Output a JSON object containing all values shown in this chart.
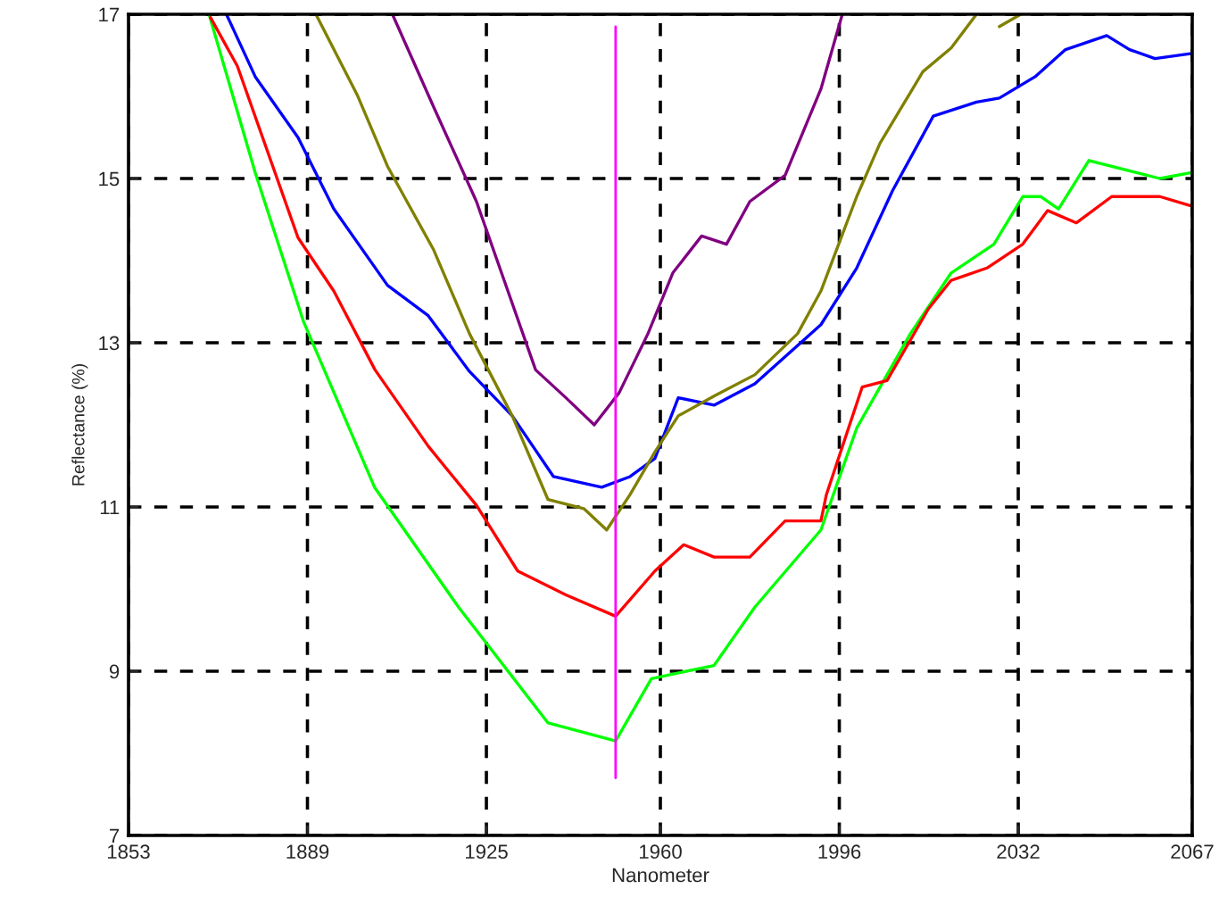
{
  "chart_data": {
    "type": "line",
    "xlabel": "Nanometer",
    "ylabel": "Reflectance (%)",
    "xlim": [
      1853,
      2067
    ],
    "ylim": [
      7,
      17
    ],
    "xticks": [
      1853,
      1889,
      1925,
      1960,
      1996,
      2032,
      2067
    ],
    "yticks": [
      7,
      9,
      11,
      13,
      15,
      17
    ],
    "grid": true,
    "legend": false,
    "marker": "none",
    "line_style": "solid",
    "ref_lines": [
      {
        "axis": "x",
        "value": 1951,
        "color": "#ff00ff"
      }
    ],
    "series": [
      {
        "color": "#00ff00",
        "x": [
          1869.2,
          1878.5,
          1888.2,
          1902.5,
          1919.4,
          1937.4,
          1951.0,
          1958.2,
          1970.8,
          1979.0,
          1992.3,
          1999.5,
          2010.3,
          2018.5,
          2027.1,
          2032.9,
          2036.5,
          2040.1,
          2046.2,
          2060.5,
          2066.6
        ],
        "values": [
          17.0,
          15.07,
          13.26,
          11.24,
          9.78,
          8.37,
          8.15,
          8.91,
          9.07,
          9.78,
          10.72,
          11.96,
          13.11,
          13.85,
          14.2,
          14.78,
          14.78,
          14.63,
          15.22,
          15.0,
          15.07
        ]
      },
      {
        "color": "#ff0000",
        "x": [
          1869.5,
          1874.9,
          1887.1,
          1894.3,
          1902.6,
          1913.3,
          1923.0,
          1931.3,
          1941.0,
          1951.0,
          1958.9,
          1964.7,
          1970.8,
          1978.0,
          1985.1,
          1992.3,
          1993.4,
          2000.6,
          2005.6,
          2013.9,
          2018.5,
          2025.7,
          2032.9,
          2037.9,
          2043.7,
          2050.8,
          2060.5,
          2066.6
        ],
        "values": [
          16.96,
          16.37,
          14.28,
          13.63,
          12.67,
          11.74,
          11.02,
          10.22,
          9.93,
          9.67,
          10.22,
          10.54,
          10.39,
          10.39,
          10.83,
          10.83,
          11.15,
          12.46,
          12.54,
          13.41,
          13.76,
          13.91,
          14.2,
          14.61,
          14.46,
          14.78,
          14.78,
          14.67
        ]
      },
      {
        "color": "#0000ff",
        "x": [
          1872.7,
          1878.5,
          1887.1,
          1894.3,
          1905.1,
          1913.3,
          1921.6,
          1930.2,
          1938.5,
          1948.2,
          1953.9,
          1958.9,
          1963.6,
          1970.8,
          1979.0,
          1992.3,
          1999.5,
          2006.7,
          2014.9,
          2023.6,
          2028.2,
          2035.4,
          2041.5,
          2049.8,
          2054.4,
          2059.5,
          2066.6
        ],
        "values": [
          17.0,
          16.24,
          15.5,
          14.63,
          13.7,
          13.33,
          12.65,
          12.11,
          11.37,
          11.24,
          11.37,
          11.59,
          12.33,
          12.24,
          12.5,
          13.22,
          13.91,
          14.85,
          15.76,
          15.93,
          15.98,
          16.24,
          16.57,
          16.74,
          16.57,
          16.46,
          16.52
        ]
      },
      {
        "color": "#808000",
        "x": [
          1890.7,
          1899.0,
          1905.1,
          1914.4,
          1921.6,
          1930.2,
          1937.4,
          1944.6,
          1949.2,
          1953.9,
          1958.9,
          1963.6,
          1970.8,
          1979.0,
          1987.6,
          1992.3,
          1999.5,
          2004.2,
          2012.8,
          2018.5,
          2023.6,
          2026.0,
          2028.2,
          2032.5
        ],
        "values": [
          17.0,
          16.02,
          15.15,
          14.13,
          13.11,
          12.11,
          11.09,
          10.98,
          10.72,
          11.15,
          11.67,
          12.11,
          12.35,
          12.61,
          13.11,
          13.63,
          14.78,
          15.43,
          16.3,
          16.59,
          17.0,
          null,
          16.85,
          17.0
        ]
      },
      {
        "color": "#800080",
        "x": [
          1906.1,
          1914.4,
          1923.0,
          1927.7,
          1934.9,
          1941.0,
          1946.7,
          1951.7,
          1957.5,
          1962.5,
          1968.3,
          1973.3,
          1978.0,
          1985.1,
          1992.3,
          1996.6
        ],
        "values": [
          17.0,
          15.87,
          14.72,
          13.91,
          12.67,
          12.33,
          12.0,
          12.39,
          13.11,
          13.85,
          14.3,
          14.2,
          14.72,
          15.04,
          16.09,
          17.0
        ]
      }
    ]
  }
}
